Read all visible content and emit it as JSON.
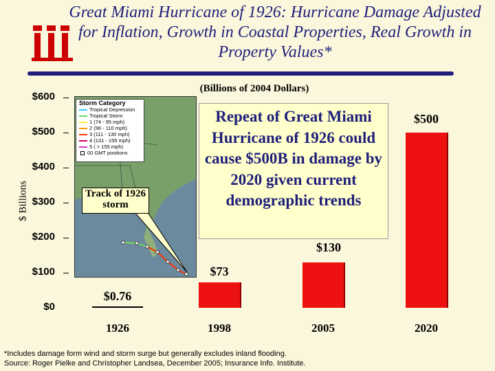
{
  "slide": {
    "title": "Great Miami Hurricane of 1926:  Hurricane Damage Adjusted for Inflation, Growth in Coastal Properties, Real Growth in Property Values*",
    "logo_text": "iii",
    "footnote_line1": "*Includes damage form wind and storm surge but generally excludes inland flooding.",
    "footnote_line2": "Source: Roger Pielke and Christopher Landsea, December 2005; Insurance Info. Institute."
  },
  "chart_data": {
    "type": "bar",
    "title": "",
    "subtitle": "(Billions of 2004 Dollars)",
    "xlabel": "",
    "ylabel": "$ Billions",
    "categories": [
      "1926",
      "1998",
      "2005",
      "2020"
    ],
    "values": [
      0.76,
      73,
      130,
      500
    ],
    "data_labels": [
      "$0.76",
      "$73",
      "$130",
      "$500"
    ],
    "ylim": [
      0,
      600
    ],
    "yticks": [
      {
        "value": 600,
        "label": "$600"
      },
      {
        "value": 500,
        "label": "$500"
      },
      {
        "value": 400,
        "label": "$400"
      },
      {
        "value": 300,
        "label": "$300"
      },
      {
        "value": 200,
        "label": "$200"
      },
      {
        "value": 100,
        "label": "$100"
      },
      {
        "value": 0,
        "label": "$0"
      }
    ],
    "bar_color": "#ee1111",
    "annotation": "Repeat of Great Miami Hurricane of 1926 could cause $500B in damage by 2020 given current demographic trends",
    "grid": false,
    "legend": "none"
  },
  "inset_map": {
    "legend_title": "Storm Category",
    "legend_items": [
      {
        "label": "Tropical Depression",
        "color": "#33ccff"
      },
      {
        "label": "Tropical Storm",
        "color": "#66dd66"
      },
      {
        "label": "1 (74 - 95 mph)",
        "color": "#ffee33"
      },
      {
        "label": "2 (96 - 110 mph)",
        "color": "#ff9900"
      },
      {
        "label": "3 (111 - 130 mph)",
        "color": "#ff3300"
      },
      {
        "label": "4 (131 - 155 mph)",
        "color": "#cc0066"
      },
      {
        "label": "5 ( > 155 mph)",
        "color": "#cc33cc"
      }
    ],
    "positions_label": "00 GMT positions",
    "callout": "Track of 1926 storm"
  },
  "colors": {
    "title": "#1f1f7a",
    "background": "#fbf7dc",
    "callout_fill": "#ffffcc"
  }
}
